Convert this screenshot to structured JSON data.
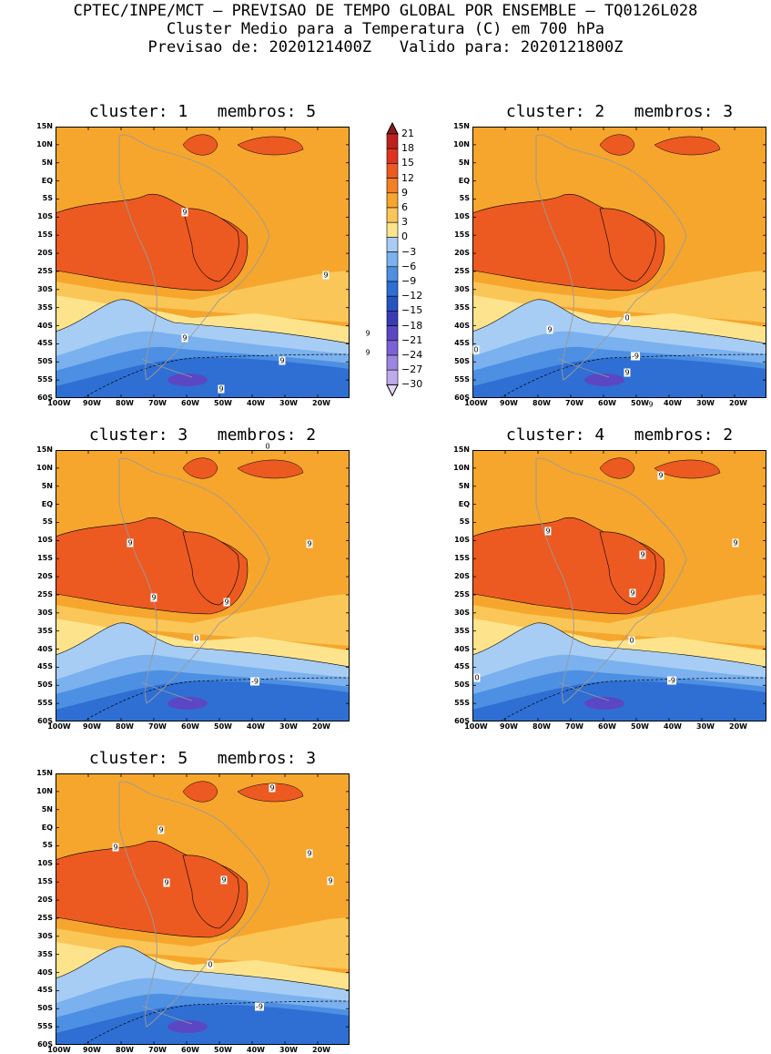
{
  "header": {
    "line1": "CPTEC/INPE/MCT – PREVISAO DE TEMPO GLOBAL POR ENSEMBLE – TQ0126L028",
    "line2": "Cluster Medio para a Temperatura (C) em 700 hPa",
    "line3": "Previsao de: 2020121400Z   Valido para: 2020121800Z"
  },
  "axes": {
    "lat_ticks": [
      "15N",
      "10N",
      "5N",
      "EQ",
      "5S",
      "10S",
      "15S",
      "20S",
      "25S",
      "30S",
      "35S",
      "40S",
      "45S",
      "50S",
      "55S",
      "60S"
    ],
    "lon_ticks": [
      "100W",
      "90W",
      "80W",
      "70W",
      "60W",
      "50W",
      "40W",
      "30W",
      "20W"
    ]
  },
  "colorbar": {
    "levels": [
      "21",
      "18",
      "15",
      "12",
      "9",
      "6",
      "3",
      "0",
      "-3",
      "-6",
      "-9",
      "-12",
      "-15",
      "-18",
      "-21",
      "-24",
      "-27",
      "-30"
    ],
    "colors": [
      "#8b1a1a",
      "#c0211e",
      "#e0331f",
      "#ec5a22",
      "#f47f26",
      "#f6a62c",
      "#fbc658",
      "#fde48c",
      "#a8cdf4",
      "#7ab1ee",
      "#4d8fe2",
      "#2f6fd4",
      "#2554c2",
      "#3b3cb3",
      "#5b47c4",
      "#7c62d6",
      "#9d84e2",
      "#c0aaee",
      "#e4d8f6"
    ]
  },
  "panels": [
    {
      "title": "cluster: 1   membros: 5",
      "labels": [
        {
          "text": "9"
        },
        {
          "text": "9"
        },
        {
          "text": "9"
        },
        {
          "text": "9"
        },
        {
          "text": "9"
        },
        {
          "text": "9"
        },
        {
          "text": "9"
        },
        {
          "text": "0"
        },
        {
          "text": "-9"
        }
      ]
    },
    {
      "title": "cluster: 2   membros: 3",
      "labels": [
        {
          "text": "9"
        },
        {
          "text": "9"
        },
        {
          "text": "9"
        },
        {
          "text": "0"
        },
        {
          "text": "0"
        },
        {
          "text": "-9"
        }
      ]
    },
    {
      "title": "cluster: 3   membros: 2",
      "labels": [
        {
          "text": "9"
        },
        {
          "text": "9"
        },
        {
          "text": "9"
        },
        {
          "text": "9"
        },
        {
          "text": "0"
        },
        {
          "text": "-9"
        }
      ]
    },
    {
      "title": "cluster: 4   membros: 2",
      "labels": [
        {
          "text": "9"
        },
        {
          "text": "9"
        },
        {
          "text": "9"
        },
        {
          "text": "9"
        },
        {
          "text": "9"
        },
        {
          "text": "0"
        },
        {
          "text": "0"
        },
        {
          "text": "-9"
        }
      ]
    },
    {
      "title": "cluster: 5   membros: 3",
      "labels": [
        {
          "text": "9"
        },
        {
          "text": "9"
        },
        {
          "text": "9"
        },
        {
          "text": "9"
        },
        {
          "text": "9"
        },
        {
          "text": "9"
        },
        {
          "text": "9"
        },
        {
          "text": "0"
        },
        {
          "text": "-9"
        }
      ]
    }
  ]
}
